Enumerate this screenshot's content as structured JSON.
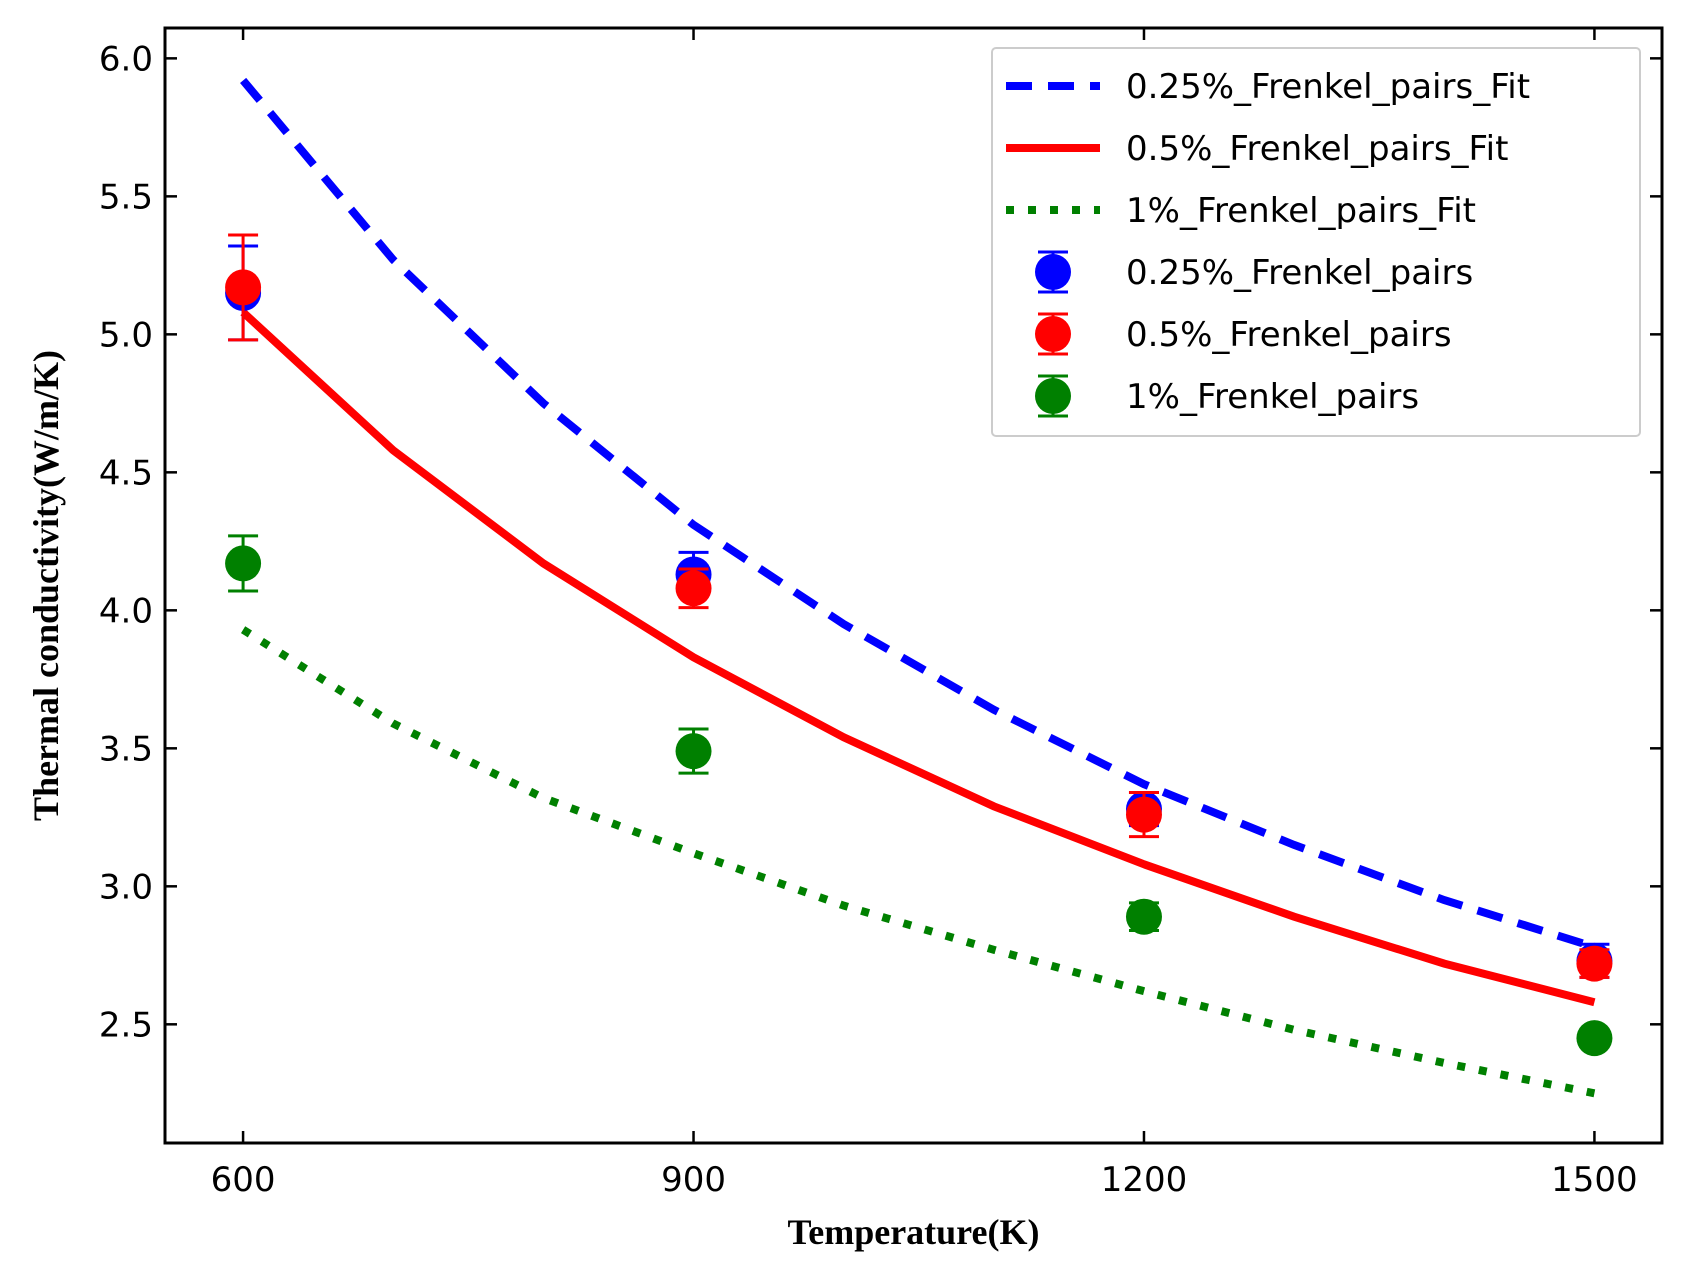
{
  "chart_data": {
    "type": "scatter",
    "title": "",
    "xlabel": "Temperature(K)",
    "ylabel": "Thermal conductivity(W/m/K)",
    "xlim": [
      548,
      1545
    ],
    "ylim": [
      2.07,
      6.11
    ],
    "xticks": [
      600,
      900,
      1200,
      1500
    ],
    "yticks": [
      2.5,
      3.0,
      3.5,
      4.0,
      4.5,
      5.0,
      5.5,
      6.0
    ],
    "grid": false,
    "legend_position": "top-right",
    "series": [
      {
        "name": "0.25%_Frenkel_pairs",
        "kind": "points",
        "color": "#0000ff",
        "x": [
          600,
          900,
          1200,
          1500
        ],
        "y": [
          5.15,
          4.13,
          3.28,
          2.73
        ],
        "err": [
          0.17,
          0.08,
          0.06,
          0.06
        ]
      },
      {
        "name": "0.5%_Frenkel_pairs",
        "kind": "points",
        "color": "#ff0000",
        "x": [
          600,
          900,
          1200,
          1500
        ],
        "y": [
          5.17,
          4.08,
          3.26,
          2.72
        ],
        "err": [
          0.19,
          0.07,
          0.08,
          0.05
        ]
      },
      {
        "name": "1%_Frenkel_pairs",
        "kind": "points",
        "color": "#008000",
        "x": [
          600,
          900,
          1200,
          1500
        ],
        "y": [
          4.17,
          3.49,
          2.89,
          2.45
        ],
        "err": [
          0.1,
          0.08,
          0.05,
          0.03
        ]
      },
      {
        "name": "0.25%_Frenkel_pairs_Fit",
        "kind": "line",
        "style": "dashed",
        "color": "#0000ff",
        "x": [
          600,
          700,
          800,
          900,
          1000,
          1100,
          1200,
          1300,
          1400,
          1500
        ],
        "y": [
          5.92,
          5.27,
          4.75,
          4.31,
          3.95,
          3.64,
          3.37,
          3.15,
          2.95,
          2.78
        ]
      },
      {
        "name": "0.5%_Frenkel_pairs_Fit",
        "kind": "line",
        "style": "solid",
        "color": "#ff0000",
        "x": [
          600,
          700,
          800,
          900,
          1000,
          1100,
          1200,
          1300,
          1400,
          1500
        ],
        "y": [
          5.08,
          4.58,
          4.17,
          3.83,
          3.54,
          3.29,
          3.08,
          2.89,
          2.72,
          2.58
        ]
      },
      {
        "name": "1%_Frenkel_pairs_Fit",
        "kind": "line",
        "style": "dotted",
        "color": "#008000",
        "x": [
          600,
          700,
          800,
          900,
          1000,
          1100,
          1200,
          1300,
          1400,
          1500
        ],
        "y": [
          3.93,
          3.59,
          3.32,
          3.12,
          2.93,
          2.77,
          2.62,
          2.48,
          2.36,
          2.25
        ]
      }
    ],
    "legend_order": [
      "0.25%_Frenkel_pairs_Fit",
      "0.5%_Frenkel_pairs_Fit",
      "1%_Frenkel_pairs_Fit",
      "0.25%_Frenkel_pairs",
      "0.5%_Frenkel_pairs",
      "1%_Frenkel_pairs"
    ]
  }
}
